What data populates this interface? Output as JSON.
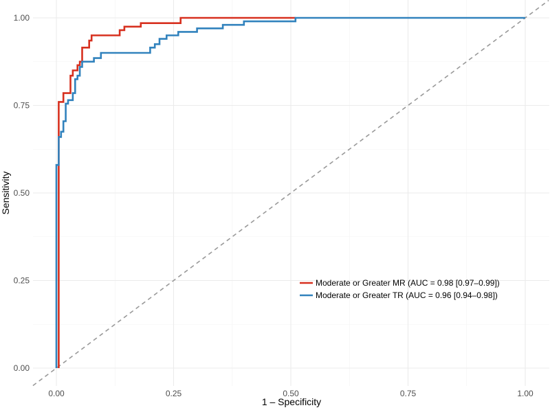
{
  "chart_data": {
    "type": "line",
    "title": "",
    "xlabel": "1 – Specificity",
    "ylabel": "Sensitivity",
    "xlim": [
      0,
      1
    ],
    "ylim": [
      0,
      1
    ],
    "x_ticks": [
      0,
      0.25,
      0.5,
      0.75,
      1
    ],
    "x_tick_labels": [
      "0.00",
      "0.25",
      "0.50",
      "0.75",
      "1.00"
    ],
    "y_ticks": [
      0,
      0.25,
      0.5,
      0.75,
      1
    ],
    "y_tick_labels": [
      "0.00",
      "0.25",
      "0.50",
      "0.75",
      "1.00"
    ],
    "grid": true,
    "legend_position": "center-right",
    "reference_line": {
      "style": "dashed",
      "color": "#999999",
      "x": [
        -0.05,
        1.05
      ],
      "y": [
        -0.05,
        1.05
      ]
    },
    "series": [
      {
        "name": "Moderate or Greater MR (AUC = 0.98 [0.97–0.99])",
        "color": "#d7301f",
        "x": [
          0.005,
          0.005,
          0.005,
          0.01,
          0.01,
          0.015,
          0.015,
          0.03,
          0.03,
          0.035,
          0.035,
          0.045,
          0.045,
          0.05,
          0.05,
          0.055,
          0.055,
          0.07,
          0.07,
          0.075,
          0.075,
          0.095,
          0.095,
          0.135,
          0.135,
          0.145,
          0.145,
          0.18,
          0.18,
          0.265,
          0.265,
          0.51
        ],
        "y": [
          0.0,
          0.56,
          0.76,
          0.76,
          0.76,
          0.76,
          0.785,
          0.785,
          0.835,
          0.835,
          0.85,
          0.85,
          0.865,
          0.865,
          0.875,
          0.875,
          0.915,
          0.915,
          0.935,
          0.935,
          0.95,
          0.95,
          0.95,
          0.95,
          0.965,
          0.965,
          0.975,
          0.975,
          0.985,
          0.985,
          1.0,
          1.0
        ]
      },
      {
        "name": "Moderate or Greater TR (AUC = 0.96 [0.94–0.98])",
        "color": "#3182bd",
        "x": [
          0.0,
          0.0,
          0.005,
          0.005,
          0.01,
          0.01,
          0.015,
          0.015,
          0.02,
          0.02,
          0.025,
          0.025,
          0.035,
          0.035,
          0.04,
          0.04,
          0.045,
          0.045,
          0.05,
          0.05,
          0.055,
          0.055,
          0.08,
          0.08,
          0.095,
          0.095,
          0.2,
          0.2,
          0.21,
          0.21,
          0.22,
          0.22,
          0.235,
          0.235,
          0.26,
          0.26,
          0.3,
          0.3,
          0.355,
          0.355,
          0.4,
          0.4,
          0.51,
          0.51,
          1.0
        ],
        "y": [
          0.0,
          0.58,
          0.58,
          0.66,
          0.66,
          0.675,
          0.675,
          0.705,
          0.705,
          0.755,
          0.755,
          0.765,
          0.765,
          0.785,
          0.785,
          0.825,
          0.825,
          0.835,
          0.835,
          0.86,
          0.86,
          0.875,
          0.875,
          0.885,
          0.885,
          0.9,
          0.9,
          0.915,
          0.915,
          0.925,
          0.925,
          0.94,
          0.94,
          0.95,
          0.95,
          0.96,
          0.96,
          0.97,
          0.97,
          0.98,
          0.98,
          0.99,
          0.99,
          1.0,
          1.0
        ]
      }
    ]
  }
}
